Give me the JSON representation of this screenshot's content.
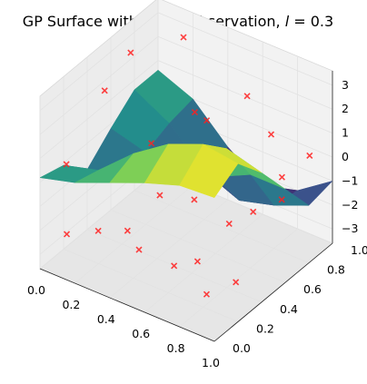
{
  "colors": {
    "pane_light": "#f2f2f2",
    "pane_mid": "#ececec",
    "pane_dark": "#e6e6e6",
    "observation_marker": "#ff2020",
    "colormap": [
      "#440154",
      "#3b528b",
      "#21918c",
      "#5ec962",
      "#fde725"
    ]
  },
  "chart_data": {
    "type": "surface3d",
    "title": "GP Surface with Noisy Observation, l = 0.3",
    "title_prefix": "GP Surface with Noisy Observation, ",
    "title_var": "l",
    "title_eq": " = 0.3",
    "x_ticks": [
      "0.0",
      "0.2",
      "0.4",
      "0.6",
      "0.8",
      "1.0"
    ],
    "y_ticks": [
      "0.0",
      "0.2",
      "0.4",
      "0.6",
      "0.8",
      "1.0"
    ],
    "z_ticks": [
      "−3",
      "−2",
      "−1",
      "0",
      "1",
      "2",
      "3"
    ],
    "x_tick_values": [
      0,
      0.2,
      0.4,
      0.6,
      0.8,
      1.0
    ],
    "y_tick_values": [
      0,
      0.2,
      0.4,
      0.6,
      0.8,
      1.0
    ],
    "z_tick_values": [
      -3,
      -2,
      -1,
      0,
      1,
      2,
      3
    ],
    "xlim": [
      0,
      1
    ],
    "ylim": [
      0,
      1
    ],
    "zlim": [
      -3.6,
      3.6
    ],
    "grid": true,
    "colormap": "viridis",
    "surface": {
      "x": [
        0.0,
        0.2,
        0.4,
        0.6,
        0.8,
        1.0
      ],
      "y": [
        0.0,
        0.2,
        0.4,
        0.6,
        0.8,
        1.0
      ],
      "z": [
        [
          0.2,
          0.6,
          1.2,
          1.8,
          2.3,
          2.4
        ],
        [
          -0.1,
          0.3,
          1.6,
          2.6,
          3.2,
          3.0
        ],
        [
          -1.1,
          -0.6,
          0.6,
          1.6,
          2.2,
          1.8
        ],
        [
          -0.2,
          -0.6,
          -1.0,
          -0.4,
          0.3,
          0.3
        ],
        [
          0.6,
          -0.2,
          -1.6,
          -2.2,
          -1.8,
          -1.2
        ],
        [
          0.6,
          0.0,
          -1.4,
          -2.4,
          -2.0,
          -1.0
        ]
      ]
    },
    "observations": [
      {
        "x": 0.05,
        "y": 0.15,
        "z": 0.3
      },
      {
        "x": 0.1,
        "y": 0.4,
        "z": 2.5
      },
      {
        "x": 0.08,
        "y": 0.65,
        "z": 3.0
      },
      {
        "x": 0.2,
        "y": 0.92,
        "z": 2.9
      },
      {
        "x": 0.12,
        "y": 0.05,
        "z": -2.0
      },
      {
        "x": 0.28,
        "y": 0.08,
        "z": -1.5
      },
      {
        "x": 0.38,
        "y": 0.18,
        "z": -1.6
      },
      {
        "x": 0.5,
        "y": 0.1,
        "z": -1.7
      },
      {
        "x": 0.45,
        "y": 0.35,
        "z": -0.6
      },
      {
        "x": 0.62,
        "y": 0.22,
        "z": -2.5
      },
      {
        "x": 0.7,
        "y": 0.3,
        "z": -2.4
      },
      {
        "x": 0.78,
        "y": 0.45,
        "z": -1.2
      },
      {
        "x": 0.85,
        "y": 0.55,
        "z": -0.9
      },
      {
        "x": 0.9,
        "y": 0.72,
        "z": 0.0
      },
      {
        "x": 0.95,
        "y": 0.88,
        "z": 0.4
      },
      {
        "x": 0.75,
        "y": 0.85,
        "z": 0.8
      },
      {
        "x": 0.68,
        "y": 0.75,
        "z": 2.6
      },
      {
        "x": 0.55,
        "y": 0.6,
        "z": 1.8
      },
      {
        "x": 0.3,
        "y": 0.5,
        "z": 0.5
      },
      {
        "x": 0.92,
        "y": 0.3,
        "z": -2.6
      },
      {
        "x": 0.82,
        "y": 0.2,
        "z": -3.0
      },
      {
        "x": 0.58,
        "y": 0.45,
        "z": -0.8
      },
      {
        "x": 0.4,
        "y": 0.72,
        "z": 1.2
      },
      {
        "x": 0.98,
        "y": 0.6,
        "z": -0.2
      }
    ]
  }
}
